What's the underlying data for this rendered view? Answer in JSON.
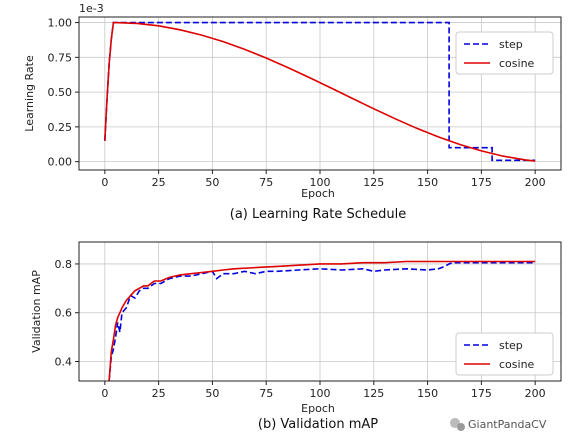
{
  "chart_data": [
    {
      "type": "line",
      "caption": "(a) Learning Rate Schedule",
      "xlabel": "Epoch",
      "ylabel": "Learning Rate",
      "scale_note": "1e-3",
      "xlim": [
        -12,
        212
      ],
      "ylim": [
        -0.06,
        1.04
      ],
      "xticks": [
        0,
        25,
        50,
        75,
        100,
        125,
        150,
        175,
        200
      ],
      "yticks": [
        0.0,
        0.25,
        0.5,
        0.75,
        1.0
      ],
      "ytick_labels": [
        "0.00",
        "0.25",
        "0.50",
        "0.75",
        "1.00"
      ],
      "grid": true,
      "legend": "top-right",
      "series": [
        {
          "name": "step",
          "color": "#0000dd",
          "style": "dashed",
          "x": [
            0,
            1,
            2,
            3,
            4,
            5,
            160,
            160,
            180,
            180,
            200
          ],
          "y": [
            0.15,
            0.45,
            0.7,
            0.88,
            1.0,
            1.0,
            1.0,
            0.1,
            0.1,
            0.01,
            0.01
          ]
        },
        {
          "name": "cosine",
          "color": "#dd0000",
          "style": "solid",
          "x": [
            0,
            1,
            2,
            3,
            4,
            5,
            15,
            25,
            35,
            45,
            55,
            65,
            75,
            85,
            95,
            105,
            115,
            125,
            135,
            145,
            155,
            165,
            175,
            185,
            195,
            200
          ],
          "y": [
            0.15,
            0.45,
            0.7,
            0.88,
            1.0,
            1.0,
            0.994,
            0.977,
            0.948,
            0.91,
            0.863,
            0.807,
            0.745,
            0.677,
            0.605,
            0.53,
            0.455,
            0.38,
            0.308,
            0.24,
            0.178,
            0.123,
            0.077,
            0.04,
            0.013,
            0.005
          ]
        }
      ]
    },
    {
      "type": "line",
      "caption": "(b) Validation mAP",
      "xlabel": "Epoch",
      "ylabel": "Validation mAP",
      "xlim": [
        -12,
        212
      ],
      "ylim": [
        0.32,
        0.89
      ],
      "xticks": [
        0,
        25,
        50,
        75,
        100,
        125,
        150,
        175,
        200
      ],
      "yticks": [
        0.4,
        0.6,
        0.8
      ],
      "ytick_labels": [
        "0.4",
        "0.6",
        "0.8"
      ],
      "grid": true,
      "legend": "bottom-right",
      "series": [
        {
          "name": "step",
          "color": "#0000dd",
          "style": "dashed",
          "x": [
            2,
            3,
            4,
            5,
            6,
            7,
            8,
            10,
            12,
            14,
            16,
            18,
            20,
            23,
            26,
            30,
            35,
            40,
            45,
            50,
            52,
            55,
            60,
            65,
            70,
            75,
            80,
            90,
            100,
            110,
            120,
            125,
            130,
            140,
            150,
            155,
            158,
            160,
            162,
            170,
            180,
            190,
            200
          ],
          "y": [
            0.25,
            0.42,
            0.45,
            0.5,
            0.56,
            0.52,
            0.6,
            0.62,
            0.67,
            0.66,
            0.69,
            0.7,
            0.7,
            0.72,
            0.72,
            0.74,
            0.75,
            0.75,
            0.76,
            0.77,
            0.74,
            0.76,
            0.76,
            0.77,
            0.76,
            0.77,
            0.77,
            0.775,
            0.78,
            0.775,
            0.78,
            0.77,
            0.775,
            0.78,
            0.775,
            0.78,
            0.79,
            0.8,
            0.805,
            0.805,
            0.805,
            0.805,
            0.805
          ]
        },
        {
          "name": "cosine",
          "color": "#dd0000",
          "style": "solid",
          "x": [
            2,
            3,
            4,
            5,
            6,
            7,
            8,
            10,
            12,
            14,
            16,
            18,
            20,
            23,
            26,
            30,
            35,
            40,
            45,
            50,
            55,
            60,
            70,
            80,
            90,
            100,
            110,
            120,
            130,
            140,
            150,
            160,
            170,
            180,
            190,
            200
          ],
          "y": [
            0.25,
            0.44,
            0.49,
            0.55,
            0.58,
            0.6,
            0.62,
            0.65,
            0.67,
            0.69,
            0.7,
            0.71,
            0.71,
            0.73,
            0.73,
            0.745,
            0.755,
            0.76,
            0.765,
            0.77,
            0.775,
            0.78,
            0.785,
            0.79,
            0.795,
            0.8,
            0.8,
            0.805,
            0.805,
            0.81,
            0.81,
            0.81,
            0.81,
            0.81,
            0.81,
            0.81
          ]
        }
      ]
    }
  ],
  "watermark": "GiantPandaCV"
}
